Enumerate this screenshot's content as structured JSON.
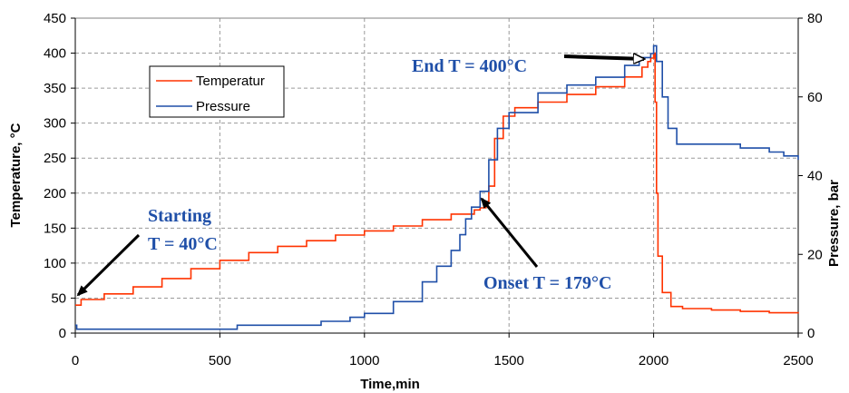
{
  "chart_data": {
    "type": "line",
    "xlabel": "Time,min",
    "ylabel": "Temperature, °C",
    "y2label": "Pressure, bar",
    "xlim": [
      0,
      2500
    ],
    "ylim": [
      0,
      450
    ],
    "y2lim": [
      0,
      80
    ],
    "xticks": [
      0,
      500,
      1000,
      1500,
      2000,
      2500
    ],
    "yticks": [
      0,
      50,
      100,
      150,
      200,
      250,
      300,
      350,
      400,
      450
    ],
    "y2ticks": [
      0,
      20,
      40,
      60,
      80
    ],
    "grid": true,
    "legend": {
      "placement": "upper-left",
      "entries": [
        "Temperatur",
        "Pressure"
      ]
    },
    "series": [
      {
        "name": "Temperatur",
        "axis": "left",
        "color": "#ff3300",
        "x": [
          0,
          5,
          20,
          100,
          200,
          300,
          400,
          500,
          600,
          700,
          800,
          900,
          1000,
          1100,
          1200,
          1300,
          1380,
          1400,
          1420,
          1430,
          1450,
          1480,
          1520,
          1600,
          1700,
          1800,
          1900,
          1960,
          1980,
          1990,
          2000,
          2005,
          2010,
          2015,
          2030,
          2060,
          2100,
          2200,
          2300,
          2400,
          2500
        ],
        "y": [
          40,
          40,
          48,
          56,
          66,
          78,
          92,
          104,
          115,
          124,
          132,
          140,
          146,
          153,
          162,
          170,
          176,
          179,
          188,
          210,
          278,
          310,
          322,
          330,
          341,
          352,
          366,
          380,
          388,
          393,
          400,
          330,
          200,
          110,
          58,
          38,
          35,
          33,
          31,
          29,
          28
        ]
      },
      {
        "name": "Pressure",
        "axis": "right",
        "color": "#1f4fa8",
        "x": [
          0,
          5,
          100,
          300,
          540,
          560,
          700,
          850,
          950,
          1000,
          1100,
          1200,
          1250,
          1300,
          1330,
          1350,
          1370,
          1400,
          1430,
          1460,
          1500,
          1600,
          1700,
          1800,
          1900,
          1950,
          1990,
          2000,
          2010,
          2030,
          2050,
          2080,
          2150,
          2200,
          2300,
          2400,
          2450,
          2500
        ],
        "y": [
          2,
          1,
          1,
          1,
          1,
          2,
          2,
          3,
          4,
          5,
          8,
          13,
          17,
          21,
          25,
          29,
          32,
          36,
          44,
          52,
          56,
          61,
          63,
          65,
          68,
          70,
          71,
          73,
          69,
          60,
          52,
          48,
          48,
          48,
          47,
          46,
          45,
          44
        ]
      }
    ],
    "annotations": [
      {
        "lines": [
          "Starting",
          "T = 40°C"
        ]
      },
      {
        "lines": [
          "Onset T = 179°C"
        ]
      },
      {
        "lines": [
          "End T = 400°C"
        ]
      }
    ]
  }
}
